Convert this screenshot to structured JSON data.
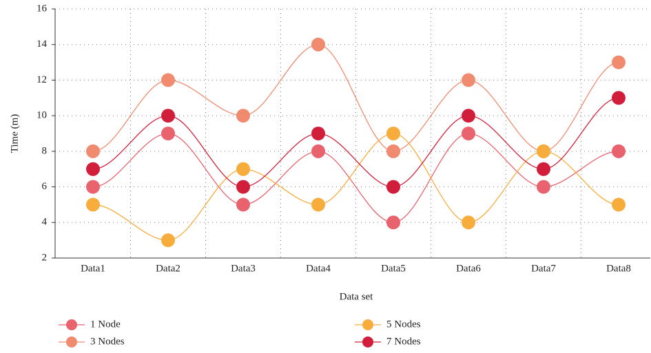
{
  "chart_data": {
    "type": "line",
    "x_label": "Data set",
    "y_label": "Time (m)",
    "categories": [
      "Data1",
      "Data2",
      "Data3",
      "Data4",
      "Data5",
      "Data6",
      "Data7",
      "Data8"
    ],
    "series": [
      {
        "name": "1 Node",
        "color": "#e8636e",
        "values": [
          6,
          9,
          5,
          8,
          4,
          9,
          6,
          8
        ]
      },
      {
        "name": "3 Nodes",
        "color": "#f08b70",
        "values": [
          8,
          12,
          10,
          14,
          8,
          12,
          8,
          13
        ]
      },
      {
        "name": "5 Nodes",
        "color": "#f7ad3c",
        "values": [
          5,
          3,
          7,
          5,
          9,
          4,
          8,
          5
        ]
      },
      {
        "name": "7 Nodes",
        "color": "#d11f3b",
        "values": [
          7,
          10,
          6,
          9,
          6,
          10,
          7,
          11
        ]
      }
    ],
    "ylim": [
      2,
      16
    ],
    "yticks": [
      2,
      4,
      6,
      8,
      10,
      12,
      14,
      16
    ],
    "grid": true,
    "smooth": true
  }
}
